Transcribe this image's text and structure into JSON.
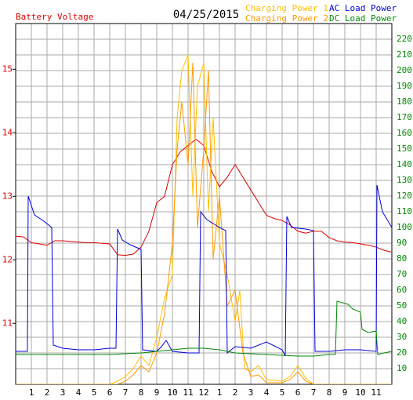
{
  "chart_data": {
    "type": "line",
    "title": "04/25/2015",
    "xlim": [
      0,
      24
    ],
    "xticks": [
      1,
      2,
      3,
      4,
      5,
      6,
      7,
      8,
      9,
      10,
      11,
      12,
      {
        "value": 13,
        "label": "1"
      },
      {
        "value": 14,
        "label": "2"
      },
      {
        "value": 15,
        "label": "3"
      },
      {
        "value": 16,
        "label": "4"
      },
      {
        "value": 17,
        "label": "5"
      },
      {
        "value": 18,
        "label": "6"
      },
      {
        "value": 19,
        "label": "7"
      },
      {
        "value": 20,
        "label": "8"
      },
      {
        "value": 21,
        "label": "9"
      },
      {
        "value": 22,
        "label": "10"
      },
      {
        "value": 23,
        "label": "11"
      }
    ],
    "ylim": [
      10.04,
      15.72
    ],
    "yticks": [
      11,
      12,
      13,
      14,
      15
    ],
    "y2lim": [
      0,
      230
    ],
    "y2ticks": [
      10,
      20,
      30,
      40,
      50,
      60,
      70,
      80,
      90,
      100,
      110,
      120,
      130,
      140,
      150,
      160,
      170,
      180,
      190,
      200,
      210,
      220
    ],
    "grid": true,
    "series": [
      {
        "name": "Battery Voltage",
        "color": "#dd0000",
        "x": [
          0,
          0.5,
          1,
          1.5,
          2,
          2.5,
          3,
          3.5,
          4,
          4.5,
          5,
          5.5,
          6,
          6.5,
          7,
          7.5,
          8,
          8.5,
          9,
          9.5,
          10,
          10.5,
          11,
          11.5,
          12,
          12.5,
          13,
          13.5,
          14,
          14.5,
          15,
          15.5,
          16,
          16.5,
          17,
          17.5,
          18,
          18.5,
          19,
          19.5,
          20,
          20.5,
          21,
          21.5,
          22,
          22.5,
          23,
          23.5,
          24
        ],
        "values": [
          12.37,
          12.36,
          12.27,
          12.25,
          12.23,
          12.3,
          12.3,
          12.29,
          12.28,
          12.27,
          12.27,
          12.26,
          12.25,
          12.08,
          12.07,
          12.09,
          12.2,
          12.45,
          12.9,
          13.0,
          13.5,
          13.7,
          13.8,
          13.9,
          13.8,
          13.4,
          13.15,
          13.3,
          13.5,
          13.3,
          13.1,
          12.9,
          12.7,
          12.65,
          12.62,
          12.55,
          12.45,
          12.42,
          12.45,
          12.45,
          12.35,
          12.3,
          12.28,
          12.27,
          12.25,
          12.23,
          12.2,
          12.15,
          12.12
        ]
      },
      {
        "name": "Charging Power 1",
        "color": "#ffc000",
        "axis": "y2",
        "x": [
          0,
          6,
          6.5,
          7,
          7.5,
          8,
          8.5,
          9,
          9.5,
          10,
          10.3,
          10.6,
          11,
          11.3,
          11.6,
          12,
          12.3,
          12.6,
          13,
          13.5,
          14,
          14.3,
          14.6,
          15,
          15.5,
          16,
          17,
          17.5,
          18,
          18.5,
          19,
          24
        ],
        "values": [
          0,
          0,
          2,
          5,
          10,
          18,
          12,
          30,
          55,
          70,
          170,
          200,
          210,
          120,
          190,
          205,
          110,
          170,
          90,
          70,
          40,
          60,
          10,
          8,
          12,
          3,
          2,
          5,
          12,
          4,
          0,
          0
        ]
      },
      {
        "name": "Charging Power 2",
        "color": "#ff9900",
        "axis": "y2",
        "x": [
          0,
          6.5,
          7,
          7.5,
          8,
          8.5,
          9,
          9.5,
          10,
          10.3,
          10.6,
          11,
          11.3,
          11.6,
          12,
          12.3,
          12.6,
          13,
          13.5,
          14,
          14.5,
          15,
          15.5,
          16,
          17,
          17.5,
          18,
          18.5,
          19,
          24
        ],
        "values": [
          0,
          0,
          2,
          6,
          12,
          8,
          20,
          45,
          90,
          150,
          180,
          140,
          205,
          100,
          150,
          200,
          80,
          120,
          50,
          60,
          20,
          5,
          6,
          1,
          1,
          3,
          8,
          2,
          0,
          0
        ]
      },
      {
        "name": "AC Load Power",
        "color": "#0000dd",
        "axis": "y2",
        "x": [
          0,
          0.75,
          0.8,
          1.2,
          1.8,
          2.3,
          2.4,
          3,
          4,
          5,
          6,
          6.4,
          6.5,
          6.8,
          7.3,
          8,
          8.1,
          9,
          9.3,
          9.6,
          10,
          11,
          11.7,
          11.8,
          12.2,
          13,
          13.4,
          13.5,
          14,
          15,
          16,
          17,
          17.2,
          17.3,
          17.6,
          18.5,
          19,
          19.1,
          20,
          21,
          22,
          23,
          23.05,
          23.4,
          24
        ],
        "values": [
          21,
          21,
          120,
          108,
          104,
          100,
          25,
          23,
          22,
          22,
          23,
          23,
          99,
          92,
          89,
          86,
          22,
          21,
          24,
          28,
          21,
          20,
          20,
          110,
          105,
          100,
          98,
          20,
          24,
          23,
          27,
          22,
          18,
          107,
          100,
          99,
          98,
          21,
          21,
          22,
          22,
          21,
          127,
          110,
          100
        ]
      },
      {
        "name": "DC Load Power",
        "color": "#008800",
        "axis": "y2",
        "x": [
          0,
          2,
          4,
          6,
          8,
          10,
          11,
          12,
          13,
          14,
          16,
          18,
          19,
          20,
          20.4,
          20.5,
          21.2,
          21.5,
          22,
          22.1,
          22.5,
          23,
          23.1,
          23.5,
          24
        ],
        "values": [
          19,
          19,
          19,
          19,
          20,
          22,
          23,
          23,
          22,
          20,
          19,
          18,
          18,
          19,
          19,
          53,
          51,
          48,
          46,
          35,
          33,
          34,
          19,
          20,
          21
        ]
      }
    ]
  }
}
